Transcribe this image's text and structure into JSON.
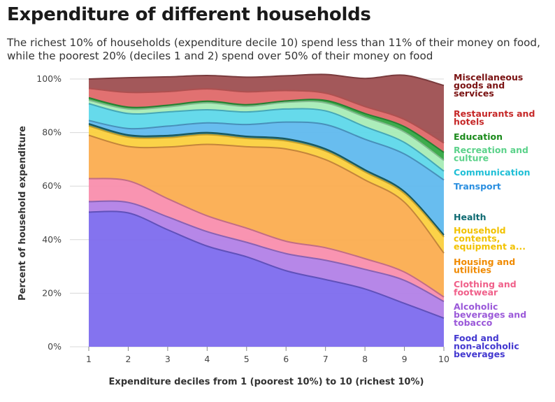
{
  "title": "Expenditure of different households",
  "subtitle": "The richest 10% of households (expenditure decile 10) spend less than 11% of their money on food, while the poorest 20% (deciles 1 and 2) spend over 50% of their money on food",
  "chart_data": {
    "type": "area",
    "stacked": true,
    "x": [
      1,
      2,
      3,
      4,
      5,
      6,
      7,
      8,
      9,
      10
    ],
    "xlabel": "Expenditure deciles from 1 (poorest 10%) to 10 (richest 10%)",
    "ylabel": "Percent of household expenditure",
    "ylim": [
      0,
      100
    ],
    "y_ticks": [
      "0%",
      "20%",
      "40%",
      "60%",
      "80%",
      "100%"
    ],
    "x_ticks": [
      "1",
      "2",
      "3",
      "4",
      "5",
      "6",
      "7",
      "8",
      "9",
      "10"
    ],
    "legend_position": "right",
    "series": [
      {
        "name": "Food and non-alcoholic beverages",
        "color": "#7b68ee",
        "values": [
          50.3,
          50.0,
          43.7,
          37.6,
          33.6,
          28.4,
          25.1,
          21.6,
          16.2,
          10.7
        ]
      },
      {
        "name": "Alcoholic beverages and tobacco",
        "color": "#b07ee6",
        "values": [
          3.9,
          3.9,
          4.8,
          5.4,
          5.4,
          6.4,
          7.2,
          7.3,
          8.6,
          6.2
        ]
      },
      {
        "name": "Clothing and footwear",
        "color": "#f98cab",
        "values": [
          8.6,
          8.1,
          6.8,
          5.9,
          5.3,
          4.6,
          4.7,
          4.0,
          3.1,
          1.7
        ]
      },
      {
        "name": "Housing and utilities",
        "color": "#fbab4c",
        "values": [
          16.2,
          12.8,
          19.3,
          26.7,
          30.4,
          34.5,
          32.9,
          29.4,
          26.1,
          16.4
        ]
      },
      {
        "name": "Household contents, equipment a...",
        "color": "#fbcf3a",
        "values": [
          3.5,
          3.5,
          3.5,
          3.6,
          3.1,
          3.0,
          3.2,
          3.0,
          3.2,
          6.0
        ]
      },
      {
        "name": "Health",
        "color": "#1f6f78",
        "values": [
          0.8,
          0.8,
          0.8,
          0.8,
          0.8,
          0.8,
          0.8,
          0.8,
          0.8,
          0.8
        ]
      },
      {
        "name": "Transport",
        "color": "#5cb8ee",
        "values": [
          1.2,
          2.4,
          3.5,
          3.6,
          4.4,
          6.2,
          9.1,
          11.4,
          14.0,
          20.5
        ]
      },
      {
        "name": "Communication",
        "color": "#5ad7ea",
        "values": [
          6.3,
          5.6,
          5.3,
          4.9,
          4.7,
          4.9,
          5.1,
          4.7,
          4.3,
          3.3
        ]
      },
      {
        "name": "Recreation and culture",
        "color": "#a6ecb5",
        "values": [
          1.3,
          1.7,
          1.9,
          2.6,
          2.1,
          2.5,
          3.0,
          3.6,
          3.9,
          4.0
        ]
      },
      {
        "name": "Education",
        "color": "#2fa540",
        "values": [
          0.9,
          0.7,
          0.6,
          0.6,
          0.6,
          0.5,
          0.9,
          1.3,
          2.0,
          3.0
        ]
      },
      {
        "name": "Restaurants and hotels",
        "color": "#df6666",
        "values": [
          3.5,
          5.5,
          5.1,
          4.6,
          4.8,
          3.9,
          2.7,
          2.6,
          2.7,
          3.5
        ]
      },
      {
        "name": "Miscellaneous goods and services",
        "color": "#9c4b4e",
        "values": [
          3.5,
          5.5,
          5.5,
          5.0,
          5.5,
          5.5,
          7.0,
          10.5,
          16.5,
          21.5
        ]
      }
    ]
  }
}
